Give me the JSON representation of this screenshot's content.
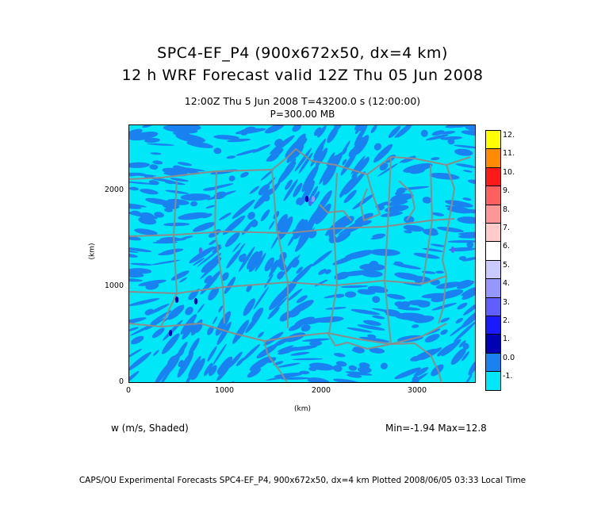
{
  "title_line1": "SPC4-EF_P4 (900x672x50, dx=4 km)",
  "title_line2": "12 h WRF Forecast valid 12Z Thu 05 Jun 2008",
  "time_line": "12:00Z Thu  5 Jun 2008     T=43200.0 s (12:00:00)",
  "level_line": "P=300.00 MB",
  "map": {
    "y_axis_unit": "(km)",
    "x_axis_unit": "(km)",
    "y_ticks": [
      "0",
      "1000",
      "2000"
    ],
    "x_ticks": [
      "0",
      "1000",
      "2000",
      "3000"
    ],
    "x_range_km": [
      0,
      3600
    ],
    "y_range_km": [
      0,
      2688
    ],
    "background_color": "#00e8f8",
    "shade_color": "#1a82f0",
    "boundary_color": "#8c8c8c"
  },
  "colorbar": {
    "labels": [
      "12.",
      "11.",
      "10.",
      "9.",
      "8.",
      "7.",
      "6.",
      "5.",
      "4.",
      "3.",
      "2.",
      "1.",
      "0.0",
      "-1."
    ],
    "colors": [
      "#ffff00",
      "#ff8c00",
      "#ff1a1a",
      "#ff5f5f",
      "#ff9696",
      "#ffcaca",
      "#ffffff",
      "#cacaff",
      "#9696ff",
      "#5f5fff",
      "#1a1aff",
      "#0000b4",
      "#1a82f0",
      "#00e8f8"
    ]
  },
  "field_label": "w (m/s, Shaded)",
  "min_max": "Min=-1.94 Max=12.8",
  "footer": "CAPS/OU Experimental Forecasts  SPC4-EF_P4, 900x672x50, dx=4 km  Plotted 2008/06/05 03:33 Local Time"
}
